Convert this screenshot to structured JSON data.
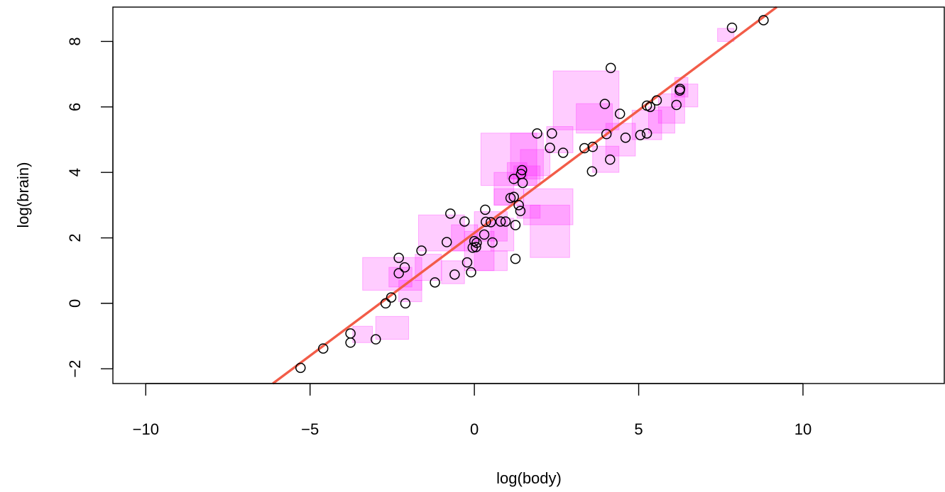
{
  "chart_data": {
    "type": "scatter",
    "title": "",
    "xlabel": "log(body)",
    "ylabel": "log(brain)",
    "xlim": [
      -11.0,
      14.3
    ],
    "ylim": [
      -2.45,
      9.05
    ],
    "xticks": [
      -10,
      -5,
      0,
      5,
      10
    ],
    "yticks": [
      -2,
      0,
      2,
      4,
      6,
      8
    ],
    "xtick_labels": [
      "−10",
      "−5",
      "0",
      "5",
      "10"
    ],
    "ytick_labels": [
      "−2",
      "0",
      "2",
      "4",
      "6",
      "8"
    ],
    "grid": false,
    "legend": false,
    "colors": {
      "points": "#000000",
      "fit_line": "#f25c48",
      "squares": "#ff00ff"
    },
    "fit_line": {
      "intercept": 2.15,
      "slope": 0.75
    },
    "points": [
      [
        -5.29,
        -1.97
      ],
      [
        -4.6,
        -1.38
      ],
      [
        -3.77,
        -0.92
      ],
      [
        -3.77,
        -1.2
      ],
      [
        -3.0,
        -1.1
      ],
      [
        -2.7,
        0.0
      ],
      [
        -2.53,
        0.18
      ],
      [
        -2.1,
        0.0
      ],
      [
        -2.3,
        0.92
      ],
      [
        -2.3,
        1.39
      ],
      [
        -2.12,
        1.1
      ],
      [
        -1.61,
        1.61
      ],
      [
        -1.2,
        0.64
      ],
      [
        -0.84,
        1.87
      ],
      [
        -0.73,
        2.74
      ],
      [
        -0.6,
        0.88
      ],
      [
        -0.3,
        2.5
      ],
      [
        -0.22,
        1.25
      ],
      [
        -0.1,
        0.95
      ],
      [
        -0.05,
        1.7
      ],
      [
        0.0,
        1.9
      ],
      [
        0.05,
        1.72
      ],
      [
        0.07,
        1.85
      ],
      [
        0.3,
        2.1
      ],
      [
        0.35,
        2.49
      ],
      [
        0.33,
        2.86
      ],
      [
        0.5,
        2.48
      ],
      [
        0.55,
        1.86
      ],
      [
        0.8,
        2.5
      ],
      [
        0.95,
        2.5
      ],
      [
        1.1,
        3.22
      ],
      [
        1.2,
        3.25
      ],
      [
        1.2,
        3.8
      ],
      [
        1.25,
        2.39
      ],
      [
        1.25,
        1.36
      ],
      [
        1.4,
        2.82
      ],
      [
        1.42,
        3.95
      ],
      [
        1.45,
        4.07
      ],
      [
        1.47,
        3.68
      ],
      [
        1.35,
        3.0
      ],
      [
        1.91,
        5.19
      ],
      [
        2.3,
        4.75
      ],
      [
        2.36,
        5.19
      ],
      [
        2.7,
        4.6
      ],
      [
        3.35,
        4.74
      ],
      [
        3.58,
        4.03
      ],
      [
        3.6,
        4.78
      ],
      [
        3.97,
        6.09
      ],
      [
        4.02,
        5.17
      ],
      [
        4.13,
        4.39
      ],
      [
        4.15,
        7.19
      ],
      [
        4.43,
        5.79
      ],
      [
        4.6,
        5.06
      ],
      [
        5.05,
        5.14
      ],
      [
        5.25,
        5.19
      ],
      [
        5.25,
        6.04
      ],
      [
        5.35,
        6.0
      ],
      [
        5.55,
        6.2
      ],
      [
        6.15,
        6.06
      ],
      [
        6.25,
        6.5
      ],
      [
        6.26,
        6.55
      ],
      [
        7.84,
        8.42
      ],
      [
        8.8,
        8.65
      ]
    ],
    "squares": [
      [
        -3.4,
        0.4,
        -1.6,
        1.4
      ],
      [
        -2.6,
        0.5,
        -1.9,
        1.1
      ],
      [
        -2.3,
        0.05,
        -1.6,
        0.7
      ],
      [
        -1.8,
        0.7,
        -1.0,
        1.5
      ],
      [
        -1.0,
        0.6,
        -0.3,
        1.3
      ],
      [
        -1.7,
        1.6,
        -0.3,
        2.7
      ],
      [
        -3.0,
        -1.1,
        -2.0,
        -0.4
      ],
      [
        -3.7,
        -1.2,
        -3.1,
        -0.7
      ],
      [
        -0.3,
        1.0,
        0.6,
        2.2
      ],
      [
        0.0,
        1.0,
        1.0,
        1.6
      ],
      [
        0.5,
        1.6,
        1.2,
        2.6
      ],
      [
        -0.7,
        1.6,
        0.1,
        2.4
      ],
      [
        0.0,
        1.9,
        1.0,
        2.8
      ],
      [
        1.7,
        1.4,
        2.9,
        3.0
      ],
      [
        1.3,
        2.6,
        2.0,
        3.0
      ],
      [
        1.5,
        2.4,
        3.0,
        3.5
      ],
      [
        0.6,
        3.0,
        1.5,
        3.5
      ],
      [
        0.6,
        3.0,
        1.2,
        4.0
      ],
      [
        0.2,
        3.6,
        1.9,
        5.2
      ],
      [
        1.1,
        3.8,
        2.1,
        5.2
      ],
      [
        1.4,
        3.9,
        2.3,
        4.7
      ],
      [
        1.0,
        3.8,
        1.6,
        4.3
      ],
      [
        1.2,
        3.6,
        2.0,
        4.2
      ],
      [
        2.2,
        4.6,
        3.0,
        5.4
      ],
      [
        2.4,
        5.3,
        4.4,
        7.1
      ],
      [
        3.1,
        5.2,
        4.2,
        6.1
      ],
      [
        3.6,
        4.0,
        4.4,
        4.8
      ],
      [
        4.0,
        4.5,
        4.9,
        5.5
      ],
      [
        4.8,
        5.0,
        5.7,
        5.9
      ],
      [
        5.3,
        5.2,
        6.1,
        6.0
      ],
      [
        5.6,
        5.5,
        6.4,
        6.4
      ],
      [
        6.0,
        6.0,
        6.8,
        6.7
      ],
      [
        6.1,
        6.3,
        6.5,
        6.9
      ],
      [
        7.4,
        8.0,
        7.9,
        8.4
      ]
    ]
  }
}
